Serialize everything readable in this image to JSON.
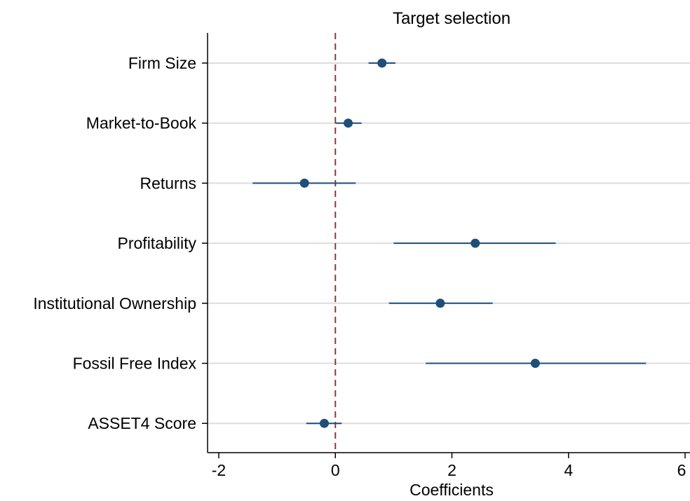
{
  "chart_data": {
    "type": "scatter",
    "title": "Target selection",
    "xlabel": "Coefficients",
    "ylabel": "",
    "xlim": [
      -2.2,
      6.1
    ],
    "xticks": [
      -2,
      0,
      2,
      4,
      6
    ],
    "reference_line": {
      "x": 0,
      "style": "dashed",
      "color": "#8B3A3A"
    },
    "grid": "horizontal",
    "categories": [
      "Firm Size",
      "Market-to-Book",
      "Returns",
      "Profitability",
      "Institutional Ownership",
      "Fossil Free Index",
      "ASSET4 Score"
    ],
    "series": [
      {
        "color": "#1F4E79",
        "estimates": [
          0.8,
          0.22,
          -0.53,
          2.4,
          1.8,
          3.43,
          -0.19
        ],
        "ci_low": [
          0.57,
          0.0,
          -1.42,
          1.0,
          0.92,
          1.55,
          -0.5
        ],
        "ci_high": [
          1.03,
          0.45,
          0.35,
          3.78,
          2.7,
          5.33,
          0.11
        ]
      }
    ]
  }
}
